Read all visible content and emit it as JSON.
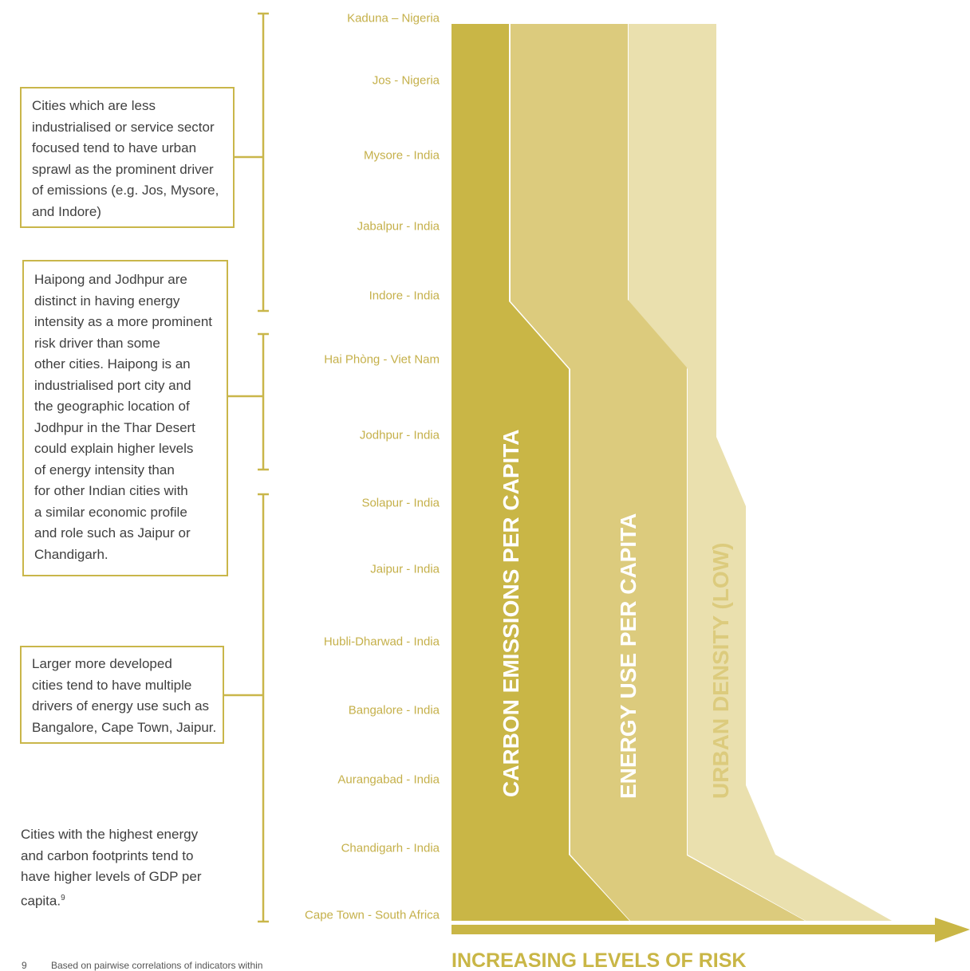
{
  "cities": [
    "Kaduna – Nigeria",
    "Jos - Nigeria",
    "Mysore - India",
    "Jabalpur - India",
    "Indore - India",
    "Hai Phòng - Viet Nam",
    "Jodhpur - India",
    "Solapur - India",
    "Jaipur - India",
    "Hubli-Dharwad - India",
    "Bangalore - India",
    "Aurangabad - India",
    "Chandigarh  - India",
    "Cape Town - South Africa"
  ],
  "notes": {
    "sprawl": [
      "Cities which are less",
      "industrialised or service sector",
      "focused tend to have urban",
      "sprawl as the prominent driver",
      "of emissions (e.g. Jos, Mysore,",
      "and Indore)"
    ],
    "energy_intensity": [
      "Haipong and Jodhpur are",
      "distinct in having energy",
      "intensity as a more prominent",
      "risk driver than some",
      "other cities. Haipong is an",
      "industrialised port city and",
      "the geographic location of",
      "Jodhpur in the Thar Desert",
      "could explain higher levels",
      "of energy intensity than",
      "for other Indian cities with",
      "a similar economic profile",
      "and role such as Jaipur or",
      "Chandigarh."
    ],
    "developed": [
      "Larger more developed",
      "cities tend to have multiple",
      "drivers of energy use such as",
      "Bangalore, Cape Town, Jaipur."
    ],
    "gdp": [
      "Cities with the highest energy",
      "and carbon footprints tend to",
      "have higher levels of GDP per",
      "capita."
    ],
    "gdp_sup": "9"
  },
  "bands": [
    {
      "label": "CARBON EMISSIONS PER CAPITA",
      "color": "#c9b646"
    },
    {
      "label": "ENERGY USE PER CAPITA",
      "color": "#dccb7d"
    },
    {
      "label": "URBAN DENSITY (LOW)",
      "color": "#eae0ae"
    }
  ],
  "axis_label": "INCREASING LEVELS OF RISK",
  "footnote": {
    "number": "9",
    "text": "Based on pairwise correlations of indicators within"
  },
  "colors": {
    "accent": "#c9b646",
    "bracket": "#c9b64a",
    "city_text": "#c5b04a",
    "body_text": "#404040"
  }
}
